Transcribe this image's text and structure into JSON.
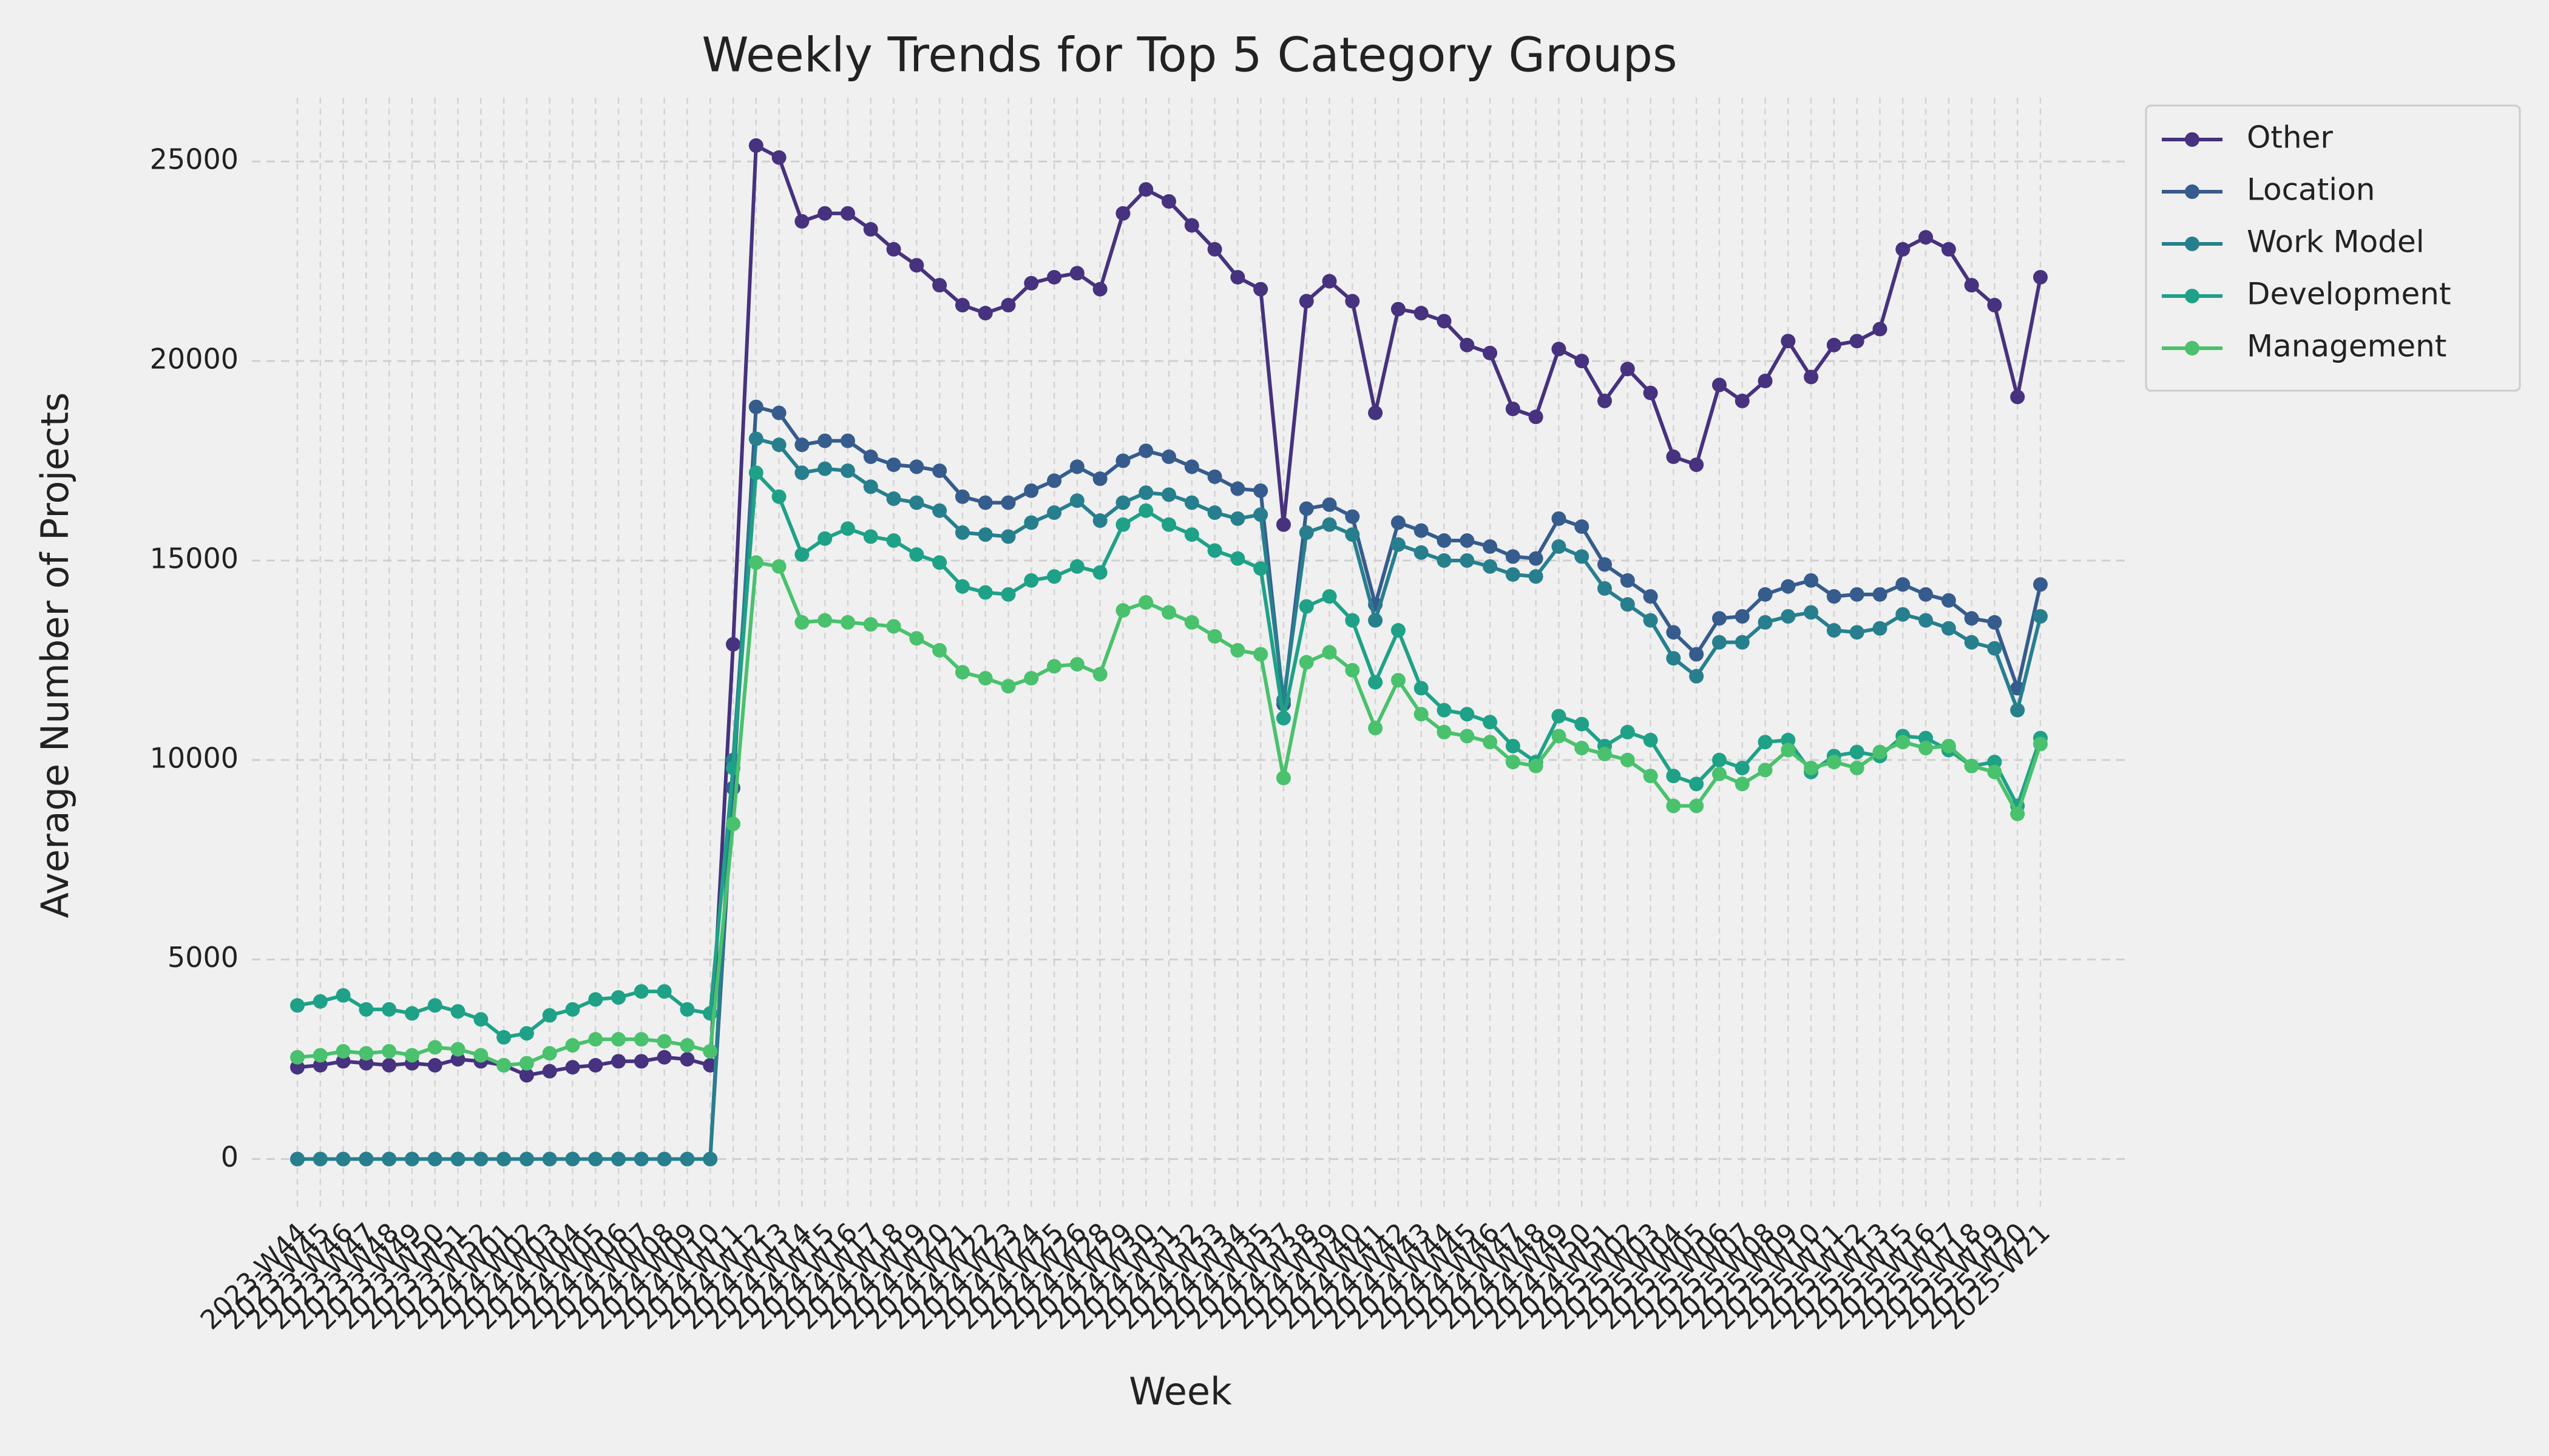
{
  "chart_data": {
    "type": "line",
    "title": "Weekly Trends for Top 5 Category Groups",
    "x_label": "Week",
    "y_label": "Average Number of Projects",
    "categories": [
      "2023-W44",
      "2023-W45",
      "2023-W46",
      "2023-W47",
      "2023-W48",
      "2023-W49",
      "2023-W50",
      "2023-W51",
      "2023-W52",
      "2024-W01",
      "2024-W02",
      "2024-W03",
      "2024-W04",
      "2024-W05",
      "2024-W06",
      "2024-W07",
      "2024-W08",
      "2024-W09",
      "2024-W10",
      "2024-W11",
      "2024-W12",
      "2024-W13",
      "2024-W14",
      "2024-W15",
      "2024-W16",
      "2024-W17",
      "2024-W18",
      "2024-W19",
      "2024-W20",
      "2024-W21",
      "2024-W22",
      "2024-W23",
      "2024-W24",
      "2024-W25",
      "2024-W26",
      "2024-W28",
      "2024-W29",
      "2024-W30",
      "2024-W31",
      "2024-W32",
      "2024-W33",
      "2024-W34",
      "2024-W35",
      "2024-W37",
      "2024-W38",
      "2024-W39",
      "2024-W40",
      "2024-W41",
      "2024-W42",
      "2024-W43",
      "2024-W44",
      "2024-W45",
      "2024-W46",
      "2024-W47",
      "2024-W48",
      "2024-W49",
      "2024-W50",
      "2024-W51",
      "2025-W02",
      "2025-W03",
      "2025-W04",
      "2025-W05",
      "2025-W06",
      "2025-W07",
      "2025-W08",
      "2025-W09",
      "2025-W10",
      "2025-W11",
      "2025-W12",
      "2025-W13",
      "2025-W15",
      "2025-W16",
      "2025-W17",
      "2025-W18",
      "2025-W19",
      "2025-W20",
      "2025-W21"
    ],
    "series": [
      {
        "name": "Other",
        "color": "#46327e",
        "values": [
          2300,
          2350,
          2450,
          2400,
          2350,
          2400,
          2350,
          2500,
          2450,
          2350,
          2100,
          2200,
          2300,
          2350,
          2450,
          2450,
          2550,
          2500,
          2350,
          12900,
          25400,
          25100,
          23500,
          23700,
          23700,
          23300,
          22800,
          22400,
          21900,
          21400,
          21200,
          21400,
          21950,
          22100,
          22200,
          21800,
          23700,
          24300,
          24000,
          23400,
          22800,
          22100,
          21800,
          15900,
          21500,
          22000,
          21500,
          18700,
          21300,
          21200,
          21000,
          20400,
          20200,
          18800,
          18600,
          20300,
          20000,
          19000,
          19800,
          19200,
          17600,
          17400,
          19400,
          19000,
          19500,
          20500,
          19600,
          20400,
          20500,
          20800,
          22800,
          23100,
          22800,
          21900,
          21400,
          19100,
          22100
        ]
      },
      {
        "name": "Location",
        "color": "#365c8d",
        "values": [
          0,
          0,
          0,
          0,
          0,
          0,
          0,
          0,
          0,
          0,
          0,
          0,
          0,
          0,
          0,
          0,
          0,
          0,
          0,
          9300,
          18850,
          18700,
          17900,
          18000,
          18000,
          17600,
          17400,
          17350,
          17250,
          16600,
          16450,
          16450,
          16750,
          17000,
          17350,
          17050,
          17500,
          17750,
          17600,
          17350,
          17100,
          16800,
          16750,
          11400,
          16300,
          16400,
          16100,
          13900,
          15950,
          15750,
          15500,
          15500,
          15350,
          15100,
          15050,
          16050,
          15850,
          14900,
          14500,
          14100,
          13200,
          12650,
          13550,
          13600,
          14150,
          14350,
          14500,
          14100,
          14150,
          14150,
          14400,
          14150,
          14000,
          13550,
          13450,
          11800,
          14400
        ]
      },
      {
        "name": "Work Model",
        "color": "#277f8e",
        "values": [
          0,
          0,
          0,
          0,
          0,
          0,
          0,
          0,
          0,
          0,
          0,
          0,
          0,
          0,
          0,
          0,
          0,
          0,
          0,
          10000,
          18050,
          17900,
          17200,
          17300,
          17250,
          16850,
          16550,
          16450,
          16250,
          15700,
          15650,
          15600,
          15950,
          16200,
          16500,
          16000,
          16450,
          16700,
          16650,
          16450,
          16200,
          16050,
          16150,
          11500,
          15700,
          15900,
          15650,
          13500,
          15400,
          15200,
          15000,
          15000,
          14850,
          14650,
          14600,
          15350,
          15100,
          14300,
          13900,
          13500,
          12550,
          12100,
          12950,
          12950,
          13450,
          13600,
          13700,
          13250,
          13200,
          13300,
          13650,
          13500,
          13300,
          12950,
          12800,
          11250,
          13600
        ]
      },
      {
        "name": "Development",
        "color": "#1fa187",
        "values": [
          3850,
          3950,
          4100,
          3750,
          3750,
          3650,
          3850,
          3700,
          3500,
          3050,
          3150,
          3600,
          3750,
          4000,
          4050,
          4200,
          4200,
          3750,
          3650,
          9800,
          17200,
          16600,
          15150,
          15550,
          15800,
          15600,
          15500,
          15150,
          14950,
          14350,
          14200,
          14150,
          14500,
          14600,
          14850,
          14700,
          15900,
          16250,
          15900,
          15650,
          15250,
          15050,
          14800,
          11050,
          13850,
          14100,
          13500,
          11950,
          13250,
          11800,
          11250,
          11150,
          10950,
          10350,
          9950,
          11100,
          10900,
          10350,
          10700,
          10500,
          9600,
          9400,
          10000,
          9800,
          10450,
          10500,
          9700,
          10100,
          10200,
          10100,
          10600,
          10550,
          10250,
          9850,
          9950,
          8850,
          10550
        ]
      },
      {
        "name": "Management",
        "color": "#4ac16d",
        "values": [
          2550,
          2600,
          2700,
          2650,
          2700,
          2600,
          2800,
          2750,
          2600,
          2350,
          2400,
          2650,
          2850,
          3000,
          3000,
          3000,
          2950,
          2850,
          2700,
          8400,
          14950,
          14850,
          13450,
          13500,
          13450,
          13400,
          13350,
          13050,
          12750,
          12200,
          12050,
          11850,
          12050,
          12350,
          12400,
          12150,
          13750,
          13950,
          13700,
          13450,
          13100,
          12750,
          12650,
          9550,
          12450,
          12700,
          12250,
          10800,
          12000,
          11150,
          10700,
          10600,
          10450,
          9950,
          9850,
          10600,
          10300,
          10150,
          10000,
          9600,
          8850,
          8850,
          9650,
          9400,
          9750,
          10250,
          9800,
          9950,
          9800,
          10200,
          10450,
          10300,
          10350,
          9850,
          9700,
          8650,
          10400
        ]
      }
    ],
    "ylim": [
      -1300,
      26600
    ],
    "yticks": [
      0,
      5000,
      10000,
      15000,
      20000,
      25000
    ],
    "grid": true,
    "legend": "right"
  }
}
